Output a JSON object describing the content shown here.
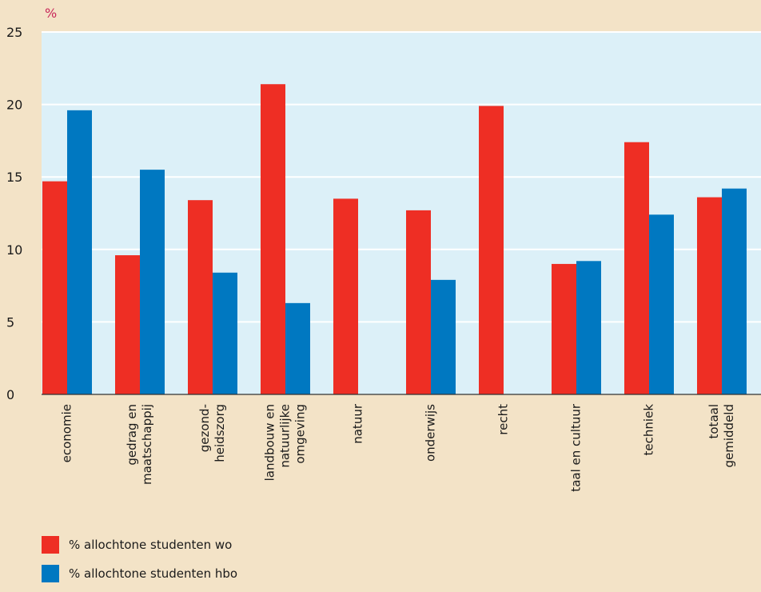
{
  "chart_data": {
    "type": "bar",
    "unit_label": "%",
    "ylim": [
      0,
      25
    ],
    "yticks": [
      0,
      5,
      10,
      15,
      20,
      25
    ],
    "grid": true,
    "categories": [
      [
        "economie"
      ],
      [
        "gedrag en",
        "maatschappij"
      ],
      [
        "gezond-",
        "heidszorg"
      ],
      [
        "landbouw en",
        "natuurlijke",
        "omgeving"
      ],
      [
        "natuur"
      ],
      [
        "onderwijs"
      ],
      [
        "recht"
      ],
      [
        "taal en cultuur"
      ],
      [
        "techniek"
      ],
      [
        "totaal",
        "gemiddeld"
      ]
    ],
    "series": [
      {
        "name": "% allochtone studenten wo",
        "color": "#ee2e24",
        "values": [
          14.7,
          9.6,
          13.4,
          21.4,
          13.5,
          12.7,
          19.9,
          9.0,
          17.4,
          13.6
        ]
      },
      {
        "name": "% allochtone studenten hbo",
        "color": "#0078c1",
        "values": [
          19.6,
          15.5,
          8.4,
          6.3,
          null,
          7.9,
          null,
          9.2,
          12.4,
          14.2
        ]
      }
    ],
    "legend_position": "bottom-left"
  },
  "colors": {
    "page_background": "#f3e3c7",
    "plot_background": "#dcf0f8",
    "axis": "#333333",
    "unit_label": "#c8285a"
  }
}
